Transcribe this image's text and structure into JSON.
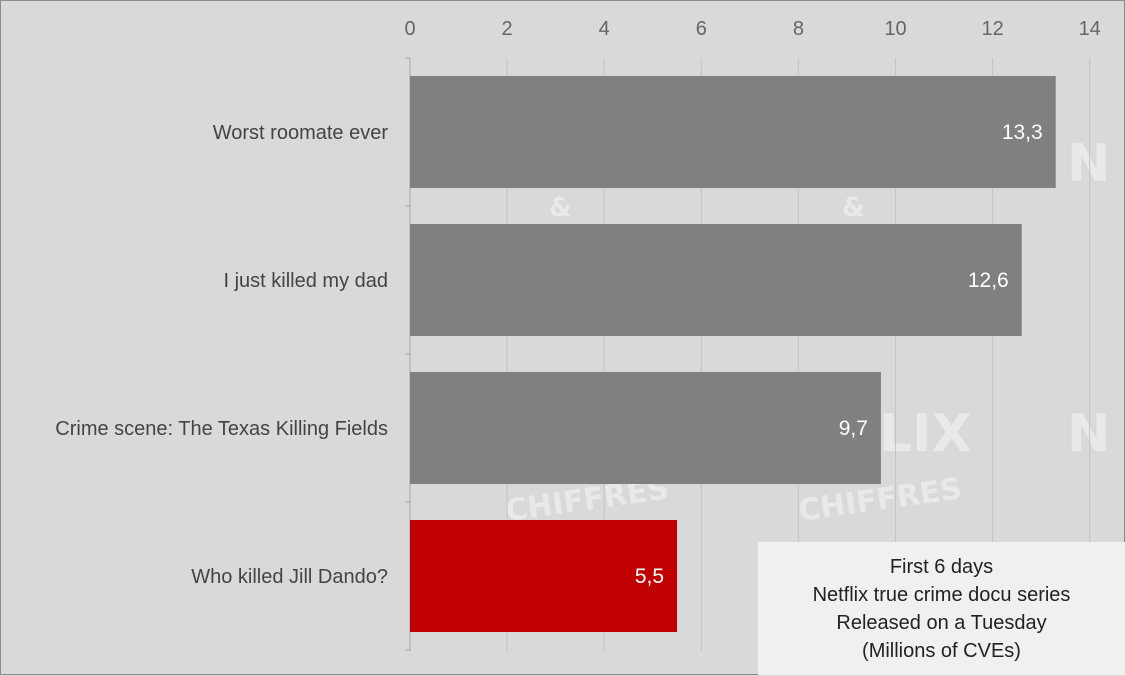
{
  "chart_data": {
    "type": "bar",
    "orientation": "horizontal",
    "categories": [
      "Worst roomate ever",
      "I just killed my dad",
      "Crime scene: The Texas Killing Fields",
      "Who killed Jill Dando?"
    ],
    "values": [
      13.3,
      12.6,
      9.7,
      5.5
    ],
    "value_labels": [
      "13,3",
      "12,6",
      "9,7",
      "5,5"
    ],
    "highlight_index": 3,
    "xlim": [
      0,
      14
    ],
    "x_ticks": [
      0,
      2,
      4,
      6,
      8,
      10,
      12,
      14
    ],
    "x_axis_position": "top",
    "grid": true,
    "colors": {
      "bar": "#808080",
      "highlight": "#c00000",
      "background": "#d9d9d9",
      "grid": "#c4c4c4"
    }
  },
  "annotation": {
    "lines": [
      "First 6 days",
      "Netflix true crime docu series",
      "Released on a Tuesday",
      "(Millions of CVEs)"
    ]
  },
  "watermark": {
    "lines": [
      "&",
      "CHIFFRES",
      "LIX",
      "N"
    ]
  }
}
